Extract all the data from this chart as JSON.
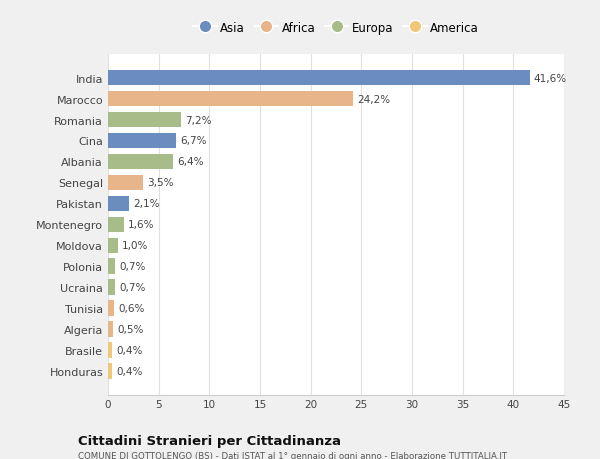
{
  "countries": [
    "India",
    "Marocco",
    "Romania",
    "Cina",
    "Albania",
    "Senegal",
    "Pakistan",
    "Montenegro",
    "Moldova",
    "Polonia",
    "Ucraina",
    "Tunisia",
    "Algeria",
    "Brasile",
    "Honduras"
  ],
  "values": [
    41.6,
    24.2,
    7.2,
    6.7,
    6.4,
    3.5,
    2.1,
    1.6,
    1.0,
    0.7,
    0.7,
    0.6,
    0.5,
    0.4,
    0.4
  ],
  "labels": [
    "41,6%",
    "24,2%",
    "7,2%",
    "6,7%",
    "6,4%",
    "3,5%",
    "2,1%",
    "1,6%",
    "1,0%",
    "0,7%",
    "0,7%",
    "0,6%",
    "0,5%",
    "0,4%",
    "0,4%"
  ],
  "colors": [
    "#6b8cbf",
    "#e8b48a",
    "#a8bc8a",
    "#6b8cbf",
    "#a8bc8a",
    "#e8b48a",
    "#6b8cbf",
    "#a8bc8a",
    "#a8bc8a",
    "#a8bc8a",
    "#a8bc8a",
    "#e8b48a",
    "#e8b48a",
    "#f0c87a",
    "#f0c87a"
  ],
  "legend_labels": [
    "Asia",
    "Africa",
    "Europa",
    "America"
  ],
  "legend_colors": [
    "#6b8cbf",
    "#e8b48a",
    "#a8bc8a",
    "#f0c87a"
  ],
  "xlim": [
    0,
    45
  ],
  "xticks": [
    0,
    5,
    10,
    15,
    20,
    25,
    30,
    35,
    40,
    45
  ],
  "title_main": "Cittadini Stranieri per Cittadinanza",
  "title_sub": "COMUNE DI GOTTOLENGO (BS) - Dati ISTAT al 1° gennaio di ogni anno - Elaborazione TUTTITALIA.IT",
  "fig_background": "#f0f0f0",
  "plot_background": "#ffffff",
  "grid_color": "#e0e0e0"
}
